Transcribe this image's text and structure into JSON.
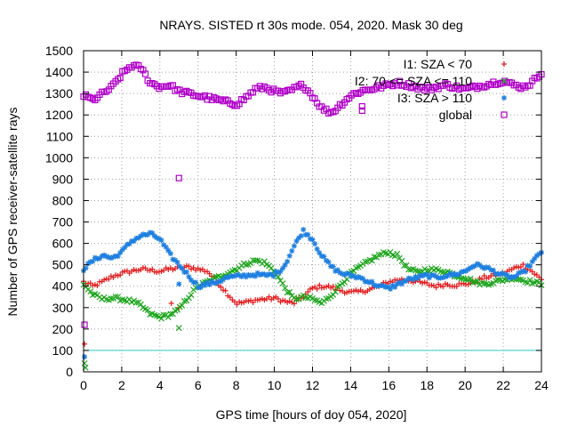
{
  "chart_data": {
    "type": "scatter",
    "title": "NRAYS. SISTED rt 30s mode. 054, 2020. Mask 30 deg",
    "xlabel": "GPS time [hours of doy 054, 2020]",
    "ylabel": "Number of GPS receiver-satellite rays",
    "xlim": [
      0,
      24
    ],
    "ylim": [
      0,
      1500
    ],
    "xticks": [
      0,
      2,
      4,
      6,
      8,
      10,
      12,
      14,
      16,
      18,
      20,
      22,
      24
    ],
    "yticks": [
      0,
      100,
      200,
      300,
      400,
      500,
      600,
      700,
      800,
      900,
      1000,
      1100,
      1200,
      1300,
      1400,
      1500
    ],
    "grid": true,
    "legend_position": "top-right",
    "reference_line": {
      "y": 100,
      "color": "#33cccc"
    },
    "series": [
      {
        "name": "I1: SZA < 70",
        "marker": "+",
        "color": "#e41a1c",
        "x": [
          0,
          0.5,
          1,
          1.5,
          2,
          2.5,
          3,
          3.5,
          4,
          4.5,
          5,
          5.5,
          6,
          6.5,
          7,
          7.5,
          8,
          8.5,
          9,
          9.5,
          10,
          10.5,
          11,
          11.5,
          12,
          12.5,
          13,
          13.5,
          14,
          14.5,
          15,
          15.5,
          16,
          16.5,
          17,
          17.5,
          18,
          18.5,
          19,
          19.5,
          20,
          20.5,
          21,
          21.5,
          22,
          22.5,
          23,
          23.5,
          24
        ],
        "values": [
          420,
          400,
          420,
          445,
          460,
          470,
          480,
          475,
          470,
          480,
          485,
          490,
          480,
          470,
          420,
          370,
          320,
          325,
          335,
          340,
          345,
          330,
          320,
          350,
          390,
          400,
          395,
          380,
          370,
          375,
          385,
          400,
          420,
          430,
          430,
          420,
          410,
          400,
          410,
          405,
          410,
          420,
          440,
          450,
          460,
          480,
          500,
          470,
          430
        ],
        "outliers": [
          {
            "x": 0.05,
            "y": 130
          },
          {
            "x": 4.6,
            "y": 320
          },
          {
            "x": 5.0,
            "y": 300
          }
        ]
      },
      {
        "name": "I2: 70 <= SZA <= 110",
        "marker": "x",
        "color": "#1aa51a",
        "x": [
          0,
          0.5,
          1,
          1.5,
          2,
          2.5,
          3,
          3.5,
          4,
          4.5,
          5,
          5.5,
          6,
          6.5,
          7,
          7.5,
          8,
          8.5,
          9,
          9.5,
          10,
          10.5,
          11,
          11.5,
          12,
          12.5,
          13,
          13.5,
          14,
          14.5,
          15,
          15.5,
          16,
          16.5,
          17,
          17.5,
          18,
          18.5,
          19,
          19.5,
          20,
          20.5,
          21,
          21.5,
          22,
          22.5,
          23,
          23.5,
          24
        ],
        "values": [
          410,
          360,
          340,
          345,
          340,
          330,
          310,
          270,
          255,
          265,
          290,
          350,
          400,
          420,
          440,
          460,
          480,
          505,
          520,
          510,
          470,
          400,
          340,
          350,
          340,
          320,
          360,
          410,
          460,
          490,
          520,
          545,
          560,
          540,
          480,
          465,
          480,
          475,
          470,
          450,
          440,
          420,
          410,
          420,
          430,
          440,
          430,
          420,
          410
        ],
        "outliers": [
          {
            "x": 0.05,
            "y": 40
          },
          {
            "x": 0.1,
            "y": 20
          },
          {
            "x": 5.0,
            "y": 205
          }
        ]
      },
      {
        "name": "I3: SZA > 110",
        "marker": "*",
        "color": "#1e7fe0",
        "x": [
          0,
          0.5,
          1,
          1.5,
          2,
          2.5,
          3,
          3.5,
          4,
          4.5,
          5,
          5.5,
          6,
          6.5,
          7,
          7.5,
          8,
          8.5,
          9,
          9.5,
          10,
          10.5,
          11,
          11.5,
          12,
          12.5,
          13,
          13.5,
          14,
          14.5,
          15,
          15.5,
          16,
          16.5,
          17,
          17.5,
          18,
          18.5,
          19,
          19.5,
          20,
          20.5,
          21,
          21.5,
          22,
          22.5,
          23,
          23.5,
          24
        ],
        "values": [
          480,
          520,
          545,
          530,
          560,
          610,
          635,
          645,
          620,
          550,
          500,
          450,
          400,
          410,
          420,
          440,
          445,
          450,
          455,
          450,
          455,
          490,
          580,
          660,
          620,
          540,
          490,
          460,
          450,
          440,
          420,
          400,
          390,
          410,
          430,
          440,
          450,
          440,
          450,
          455,
          470,
          500,
          490,
          470,
          450,
          440,
          460,
          510,
          560
        ],
        "outliers": [
          {
            "x": 0.05,
            "y": 70
          },
          {
            "x": 5.0,
            "y": 410
          }
        ]
      },
      {
        "name": "global",
        "marker": "square",
        "color": "#b000c8",
        "x": [
          0,
          0.5,
          1,
          1.5,
          2,
          2.5,
          3,
          3.5,
          4,
          4.5,
          5,
          5.5,
          6,
          6.5,
          7,
          7.5,
          8,
          8.5,
          9,
          9.5,
          10,
          10.5,
          11,
          11.5,
          12,
          12.5,
          13,
          13.5,
          14,
          14.5,
          15,
          15.5,
          16,
          16.5,
          17,
          17.5,
          18,
          18.5,
          19,
          19.5,
          20,
          20.5,
          21,
          21.5,
          22,
          22.5,
          23,
          23.5,
          24
        ],
        "values": [
          1290,
          1270,
          1300,
          1330,
          1390,
          1430,
          1420,
          1350,
          1330,
          1340,
          1310,
          1300,
          1290,
          1280,
          1270,
          1260,
          1250,
          1280,
          1320,
          1330,
          1310,
          1300,
          1320,
          1340,
          1290,
          1230,
          1210,
          1250,
          1290,
          1310,
          1320,
          1330,
          1340,
          1350,
          1340,
          1330,
          1320,
          1330,
          1340,
          1330,
          1320,
          1330,
          1340,
          1350,
          1360,
          1340,
          1330,
          1350,
          1400
        ],
        "outliers": [
          {
            "x": 0.05,
            "y": 220
          },
          {
            "x": 5.0,
            "y": 905
          },
          {
            "x": 14.6,
            "y": 1240
          },
          {
            "x": 14.6,
            "y": 1220
          }
        ]
      }
    ]
  }
}
